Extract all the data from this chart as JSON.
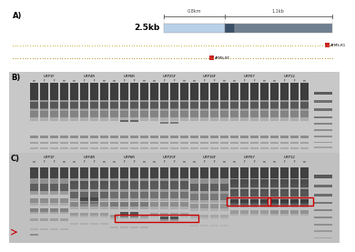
{
  "title_A": "A)",
  "title_B": "B)",
  "title_C": "C)",
  "size_label": "2.5kb",
  "bracket_label_left": "0.8km",
  "bracket_label_right": "1.1kb",
  "primer_label1": "AFMS-R1",
  "primer_label2": "AFMS-RT",
  "gene_groups": [
    "URP1F",
    "URP4R",
    "URP6R",
    "URP25F",
    "URP16F",
    "URP07",
    "URP12"
  ],
  "lane_labels": [
    "m",
    "F",
    "F",
    "m"
  ],
  "bg_gel_B": "#c8c8c8",
  "bg_gel_C": "#c0c0c0",
  "dot_color1": "#c8a830",
  "dot_color2": "#b09020",
  "red_box_color": "#cc0000",
  "bar_light": "#b8d0e8",
  "bar_dark": "#708090",
  "bar_mid": "#3a5068",
  "white": "#ffffff"
}
